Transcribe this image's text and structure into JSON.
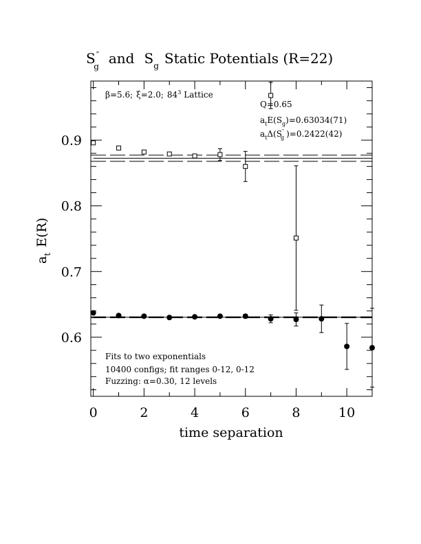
{
  "chart_data": {
    "type": "scatter",
    "title": {
      "s1": "S",
      "s1_sup": "″",
      "s1_sub": "g",
      "mid": "and",
      "s2": "S",
      "s2_sub": "g",
      "rest": "Static Potentials (R=22)"
    },
    "xlabel": "time separation",
    "ylabel": {
      "a": "a",
      "a_sub": "t",
      "rest": "E(R)"
    },
    "xlim": [
      -0.1,
      11.0
    ],
    "ylim": [
      0.51,
      0.99
    ],
    "xticks": [
      0,
      2,
      4,
      6,
      8,
      10
    ],
    "yticks": [
      0.6,
      0.7,
      0.8,
      0.9
    ],
    "xtick_labels": [
      "0",
      "2",
      "4",
      "6",
      "8",
      "10"
    ],
    "ytick_labels": [
      "0.6",
      "0.7",
      "0.8",
      "0.9"
    ],
    "grid": false,
    "annotations": {
      "lattice": {
        "beta": "β=5.6;",
        "xi": "ξ=2.0;",
        "size": "84",
        "size_sup": "3",
        "word": "Lattice"
      },
      "q": "Q=0.65",
      "energy": {
        "a": "a",
        "a_sub": "t",
        "e": "E(S",
        "e_sub": "g",
        "val": ")=0.63034(71)"
      },
      "delta": {
        "a": "a",
        "a_sub": "t",
        "d": "Δ(S",
        "d_sup": "″",
        "d_sub": "g",
        "val": ")=0.2422(42)"
      },
      "fit_note": [
        "Fits to two exponentials",
        "10400 configs; fit ranges 0-12, 0-12",
        "Fuzzing: α=0.30, 12 levels"
      ]
    },
    "series": [
      {
        "name": "Sg'' (open squares)",
        "marker": "open-square",
        "x": [
          0,
          1,
          2,
          3,
          4,
          5,
          6,
          7,
          8
        ],
        "y": [
          0.896,
          0.888,
          0.882,
          0.879,
          0.876,
          0.878,
          0.86,
          0.968,
          0.751
        ],
        "err": [
          0.001,
          0.001,
          0.001,
          0.001,
          0.002,
          0.009,
          0.023,
          0.02,
          0.11
        ],
        "fit_y": 0.8725,
        "fit_band": [
          0.8678,
          0.8772
        ]
      },
      {
        "name": "Sg (filled circles)",
        "marker": "filled-circle",
        "x": [
          0,
          1,
          2,
          3,
          4,
          5,
          6,
          7,
          8,
          9,
          10,
          11
        ],
        "y": [
          0.637,
          0.633,
          0.632,
          0.63,
          0.631,
          0.632,
          0.632,
          0.628,
          0.627,
          0.628,
          0.586,
          0.584
        ],
        "err": [
          0.002,
          0.002,
          0.002,
          0.002,
          0.002,
          0.002,
          0.003,
          0.006,
          0.01,
          0.021,
          0.035,
          0.06
        ],
        "fit_y": 0.63034,
        "fit_band": [
          0.6296,
          0.6311
        ]
      }
    ]
  }
}
